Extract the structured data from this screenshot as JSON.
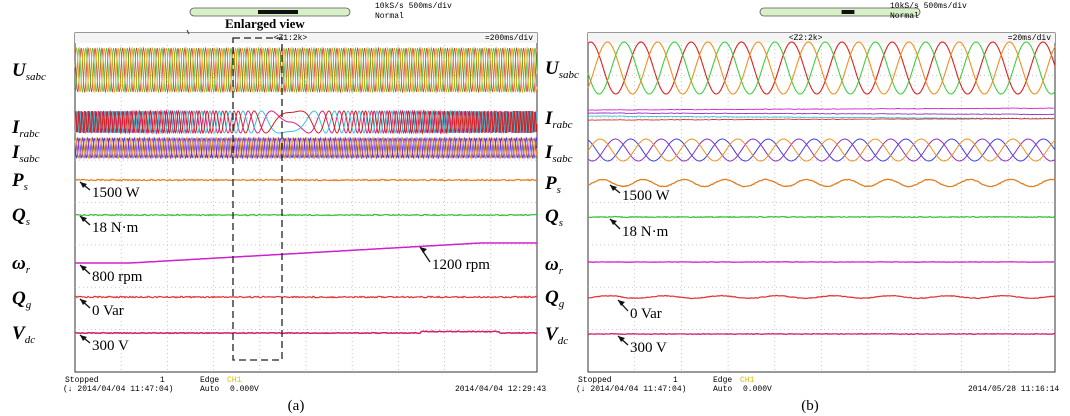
{
  "panels": [
    {
      "header": {
        "sample_rate": "10kS/s 500ms/div",
        "mode": "Normal",
        "zoom": "<Z1:2k>",
        "timebase": "=200ms/div"
      },
      "callout": "Enlarged view",
      "channels": [
        {
          "symbol": "U",
          "subscript": "sabc"
        },
        {
          "symbol": "I",
          "subscript": "rabc"
        },
        {
          "symbol": "I",
          "subscript": "sabc"
        },
        {
          "symbol": "P",
          "subscript": "s"
        },
        {
          "symbol": "Q",
          "subscript": "s"
        },
        {
          "symbol": "ω",
          "subscript": "r"
        },
        {
          "symbol": "Q",
          "subscript": "g"
        },
        {
          "symbol": "V",
          "subscript": "dc"
        }
      ],
      "annotations": [
        "1500 W",
        "18 N·m",
        "800 rpm",
        "1200 rpm",
        "0 Var",
        "300 V"
      ],
      "footer": {
        "state": "Stopped",
        "count": "1",
        "trigger_time": "(↓ 2014/04/04 11:47:04)",
        "trigger": "Edge",
        "channel": "CH1",
        "trigger_mode": "Auto",
        "level": "0.000V",
        "timestamp": "2014/04/04 12:29:43"
      },
      "caption": "(a)"
    },
    {
      "header": {
        "sample_rate": "10kS/s 500ms/div",
        "mode": "Normal",
        "zoom": "<Z2:2k>",
        "timebase": "=20ms/div"
      },
      "channels": [
        {
          "symbol": "U",
          "subscript": "sabc"
        },
        {
          "symbol": "I",
          "subscript": "rabc"
        },
        {
          "symbol": "I",
          "subscript": "sabc"
        },
        {
          "symbol": "P",
          "subscript": "s"
        },
        {
          "symbol": "Q",
          "subscript": "s"
        },
        {
          "symbol": "ω",
          "subscript": "r"
        },
        {
          "symbol": "Q",
          "subscript": "g"
        },
        {
          "symbol": "V",
          "subscript": "dc"
        }
      ],
      "annotations": [
        "1500 W",
        "18 N·m",
        "0 Var",
        "300 V"
      ],
      "footer": {
        "state": "Stopped",
        "count": "1",
        "trigger_time": "(↓ 2014/04/04 11:47:04)",
        "trigger": "Edge",
        "channel": "CH1",
        "trigger_mode": "Auto",
        "level": "0.000V",
        "timestamp": "2014/05/28 11:16:14"
      },
      "caption": "(b)"
    }
  ]
}
